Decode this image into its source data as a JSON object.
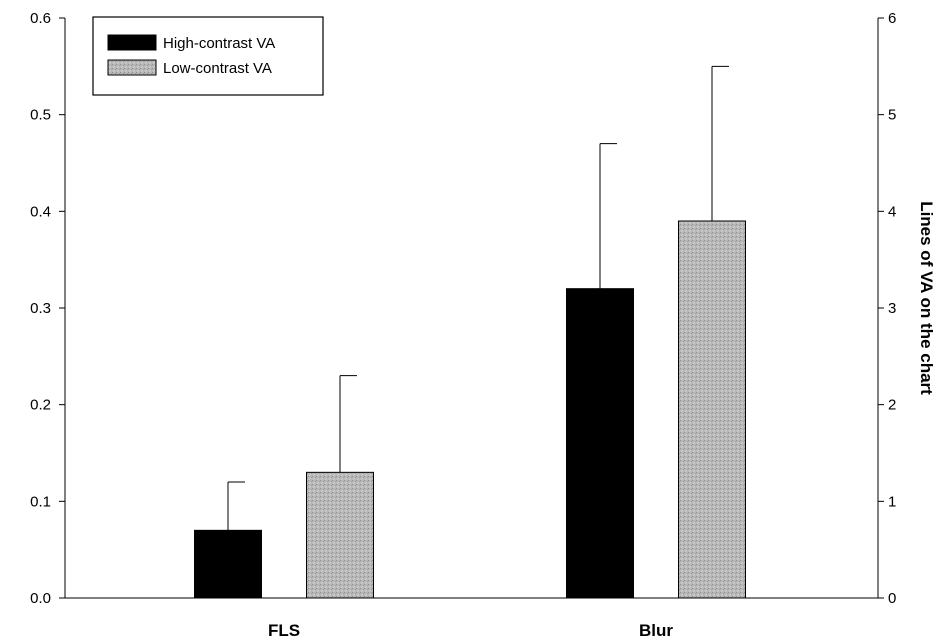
{
  "chart_data": {
    "type": "bar",
    "categories": [
      "FLS",
      "Blur"
    ],
    "series": [
      {
        "name": "High-contrast VA",
        "values": [
          0.07,
          0.32
        ],
        "error_plus": [
          0.05,
          0.15
        ],
        "color": "#000000"
      },
      {
        "name": "Low-contrast VA",
        "values": [
          0.13,
          0.39
        ],
        "error_plus": [
          0.1,
          0.16
        ],
        "color": "#b4b4b4"
      }
    ],
    "xlabel": "",
    "ylabel": "",
    "ylim": [
      0,
      0.6
    ],
    "yticks": [
      "0.0",
      "0.1",
      "0.2",
      "0.3",
      "0.4",
      "0.5",
      "0.6"
    ],
    "y2label": "Lines of VA on the chart",
    "y2lim": [
      0,
      6
    ],
    "y2ticks": [
      "0",
      "1",
      "2",
      "3",
      "4",
      "5",
      "6"
    ],
    "grid": false,
    "legend_position": "top-left"
  }
}
